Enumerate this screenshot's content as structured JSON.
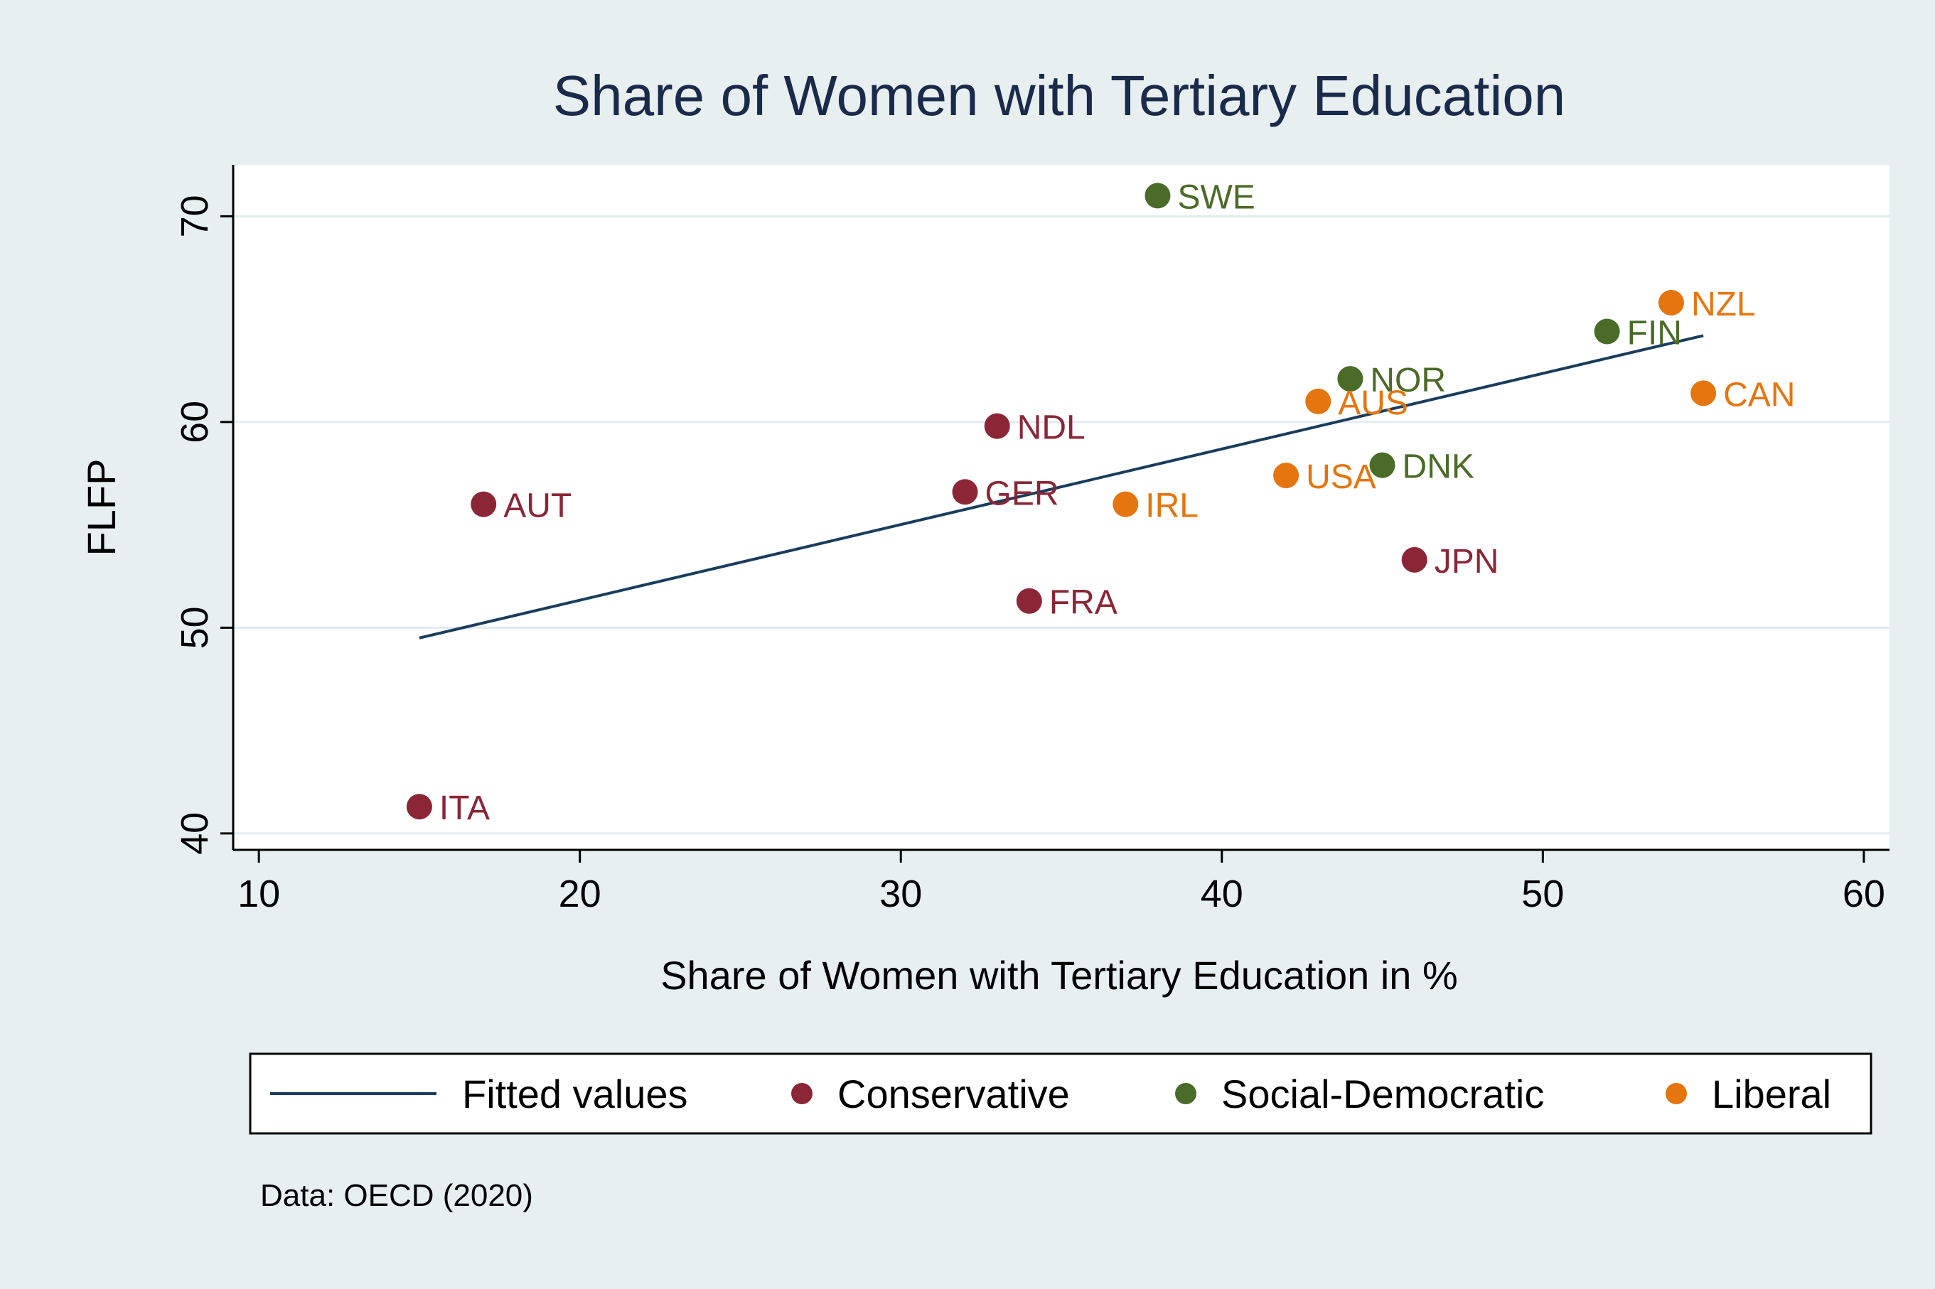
{
  "chart_data": {
    "type": "scatter",
    "title": "Share of Women with Tertiary Education",
    "xlabel": "Share of Women with Tertiary Education in %",
    "ylabel": "FLFP",
    "xlim": [
      9.2,
      60.8
    ],
    "ylim": [
      39.2,
      72.5
    ],
    "x_ticks": [
      10,
      20,
      30,
      40,
      50,
      60
    ],
    "y_ticks": [
      40,
      50,
      60,
      70
    ],
    "grid": true,
    "legend_position": "bottom",
    "note": "Data: OECD (2020)",
    "fit_line": {
      "name": "Fitted values",
      "color": "#1a3d5c",
      "points": [
        [
          15,
          49.5
        ],
        [
          55,
          64.2
        ]
      ]
    },
    "series": [
      {
        "name": "Conservative",
        "color": "#8b2637",
        "points": [
          {
            "label": "ITA",
            "x": 15,
            "y": 41.3
          },
          {
            "label": "AUT",
            "x": 17,
            "y": 56.0
          },
          {
            "label": "GER",
            "x": 32,
            "y": 56.6
          },
          {
            "label": "NDL",
            "x": 33,
            "y": 59.8
          },
          {
            "label": "FRA",
            "x": 34,
            "y": 51.3
          },
          {
            "label": "JPN",
            "x": 46,
            "y": 53.3
          }
        ]
      },
      {
        "name": "Social-Democratic",
        "color": "#4b6b28",
        "points": [
          {
            "label": "SWE",
            "x": 38,
            "y": 71.0
          },
          {
            "label": "NOR",
            "x": 44,
            "y": 62.1
          },
          {
            "label": "DNK",
            "x": 45,
            "y": 57.9
          },
          {
            "label": "FIN",
            "x": 52,
            "y": 64.4
          }
        ]
      },
      {
        "name": "Liberal",
        "color": "#e5750e",
        "points": [
          {
            "label": "IRL",
            "x": 37,
            "y": 56.0
          },
          {
            "label": "USA",
            "x": 42,
            "y": 57.4
          },
          {
            "label": "AUS",
            "x": 43,
            "y": 61.0
          },
          {
            "label": "NZL",
            "x": 54,
            "y": 65.8
          },
          {
            "label": "CAN",
            "x": 55,
            "y": 61.4
          }
        ]
      }
    ]
  }
}
